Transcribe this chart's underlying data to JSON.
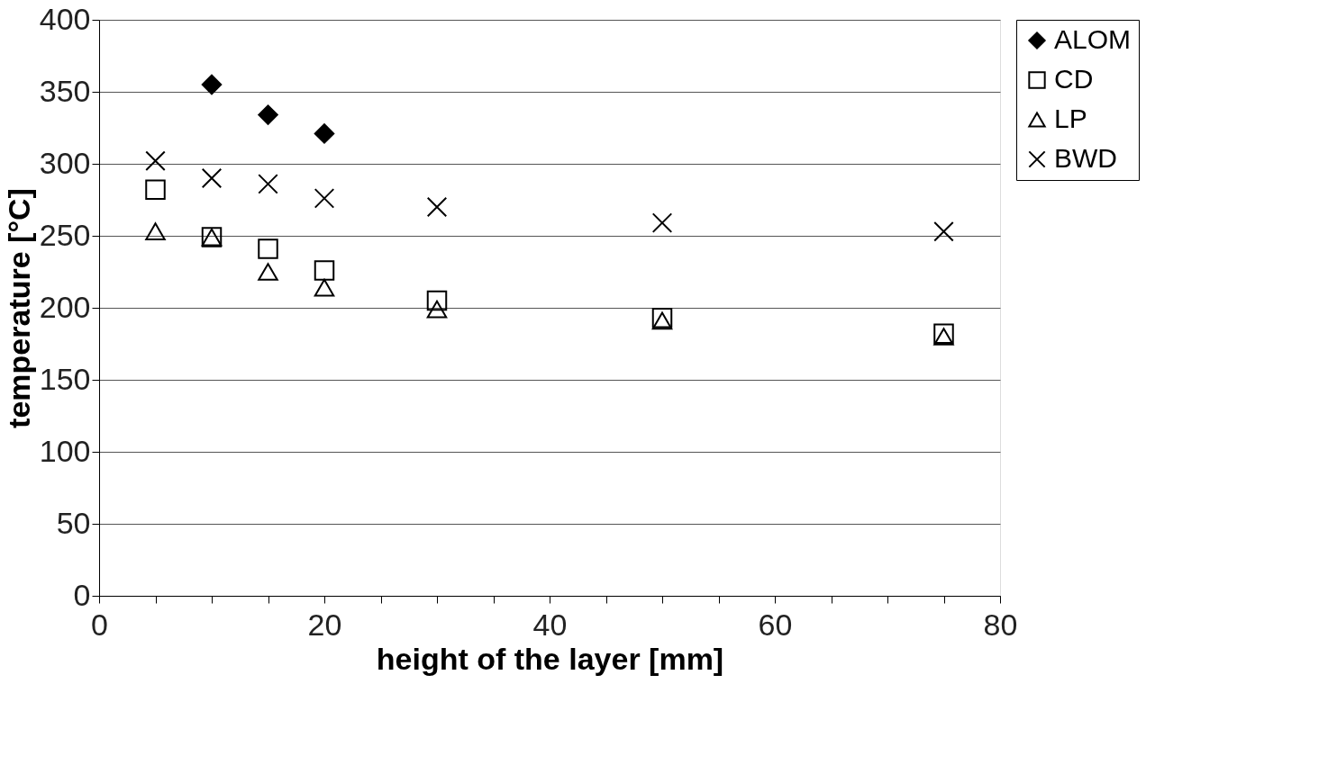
{
  "chart_data": {
    "type": "scatter",
    "xlabel": "height of the layer [mm]",
    "ylabel": "temperature [°C]",
    "xlim": [
      0,
      80
    ],
    "ylim": [
      0,
      400
    ],
    "xticks": [
      0,
      {
        "value": 5,
        "label": null
      },
      {
        "value": 10,
        "label": null
      },
      {
        "value": 15,
        "label": null
      },
      20,
      {
        "value": 25,
        "label": null
      },
      {
        "value": 30,
        "label": null
      },
      {
        "value": 35,
        "label": null
      },
      40,
      {
        "value": 45,
        "label": null
      },
      {
        "value": 50,
        "label": null
      },
      {
        "value": 55,
        "label": null
      },
      60,
      {
        "value": 65,
        "label": null
      },
      {
        "value": 70,
        "label": null
      },
      {
        "value": 75,
        "label": null
      },
      80
    ],
    "yticks": [
      0,
      50,
      100,
      150,
      200,
      250,
      300,
      350,
      400
    ],
    "grid": "y",
    "legend": "right",
    "series": [
      {
        "name": "ALOM",
        "color": "#000000",
        "marker": "diamond",
        "x": [
          10,
          15,
          20
        ],
        "values": [
          355,
          334,
          321
        ]
      },
      {
        "name": "CD",
        "color": "#000000",
        "marker": "square",
        "x": [
          5,
          10,
          15,
          20,
          30,
          50,
          75
        ],
        "values": [
          282,
          249,
          241,
          226,
          205,
          193,
          182
        ]
      },
      {
        "name": "LP",
        "color": "#000000",
        "marker": "triangle",
        "x": [
          5,
          10,
          15,
          20,
          30,
          50,
          75
        ],
        "values": [
          253,
          249,
          225,
          214,
          199,
          191,
          180
        ]
      },
      {
        "name": "BWD",
        "color": "#000000",
        "marker": "cross",
        "x": [
          5,
          10,
          15,
          20,
          30,
          50,
          75
        ],
        "values": [
          302,
          290,
          286,
          276,
          270,
          259,
          253
        ]
      }
    ]
  }
}
